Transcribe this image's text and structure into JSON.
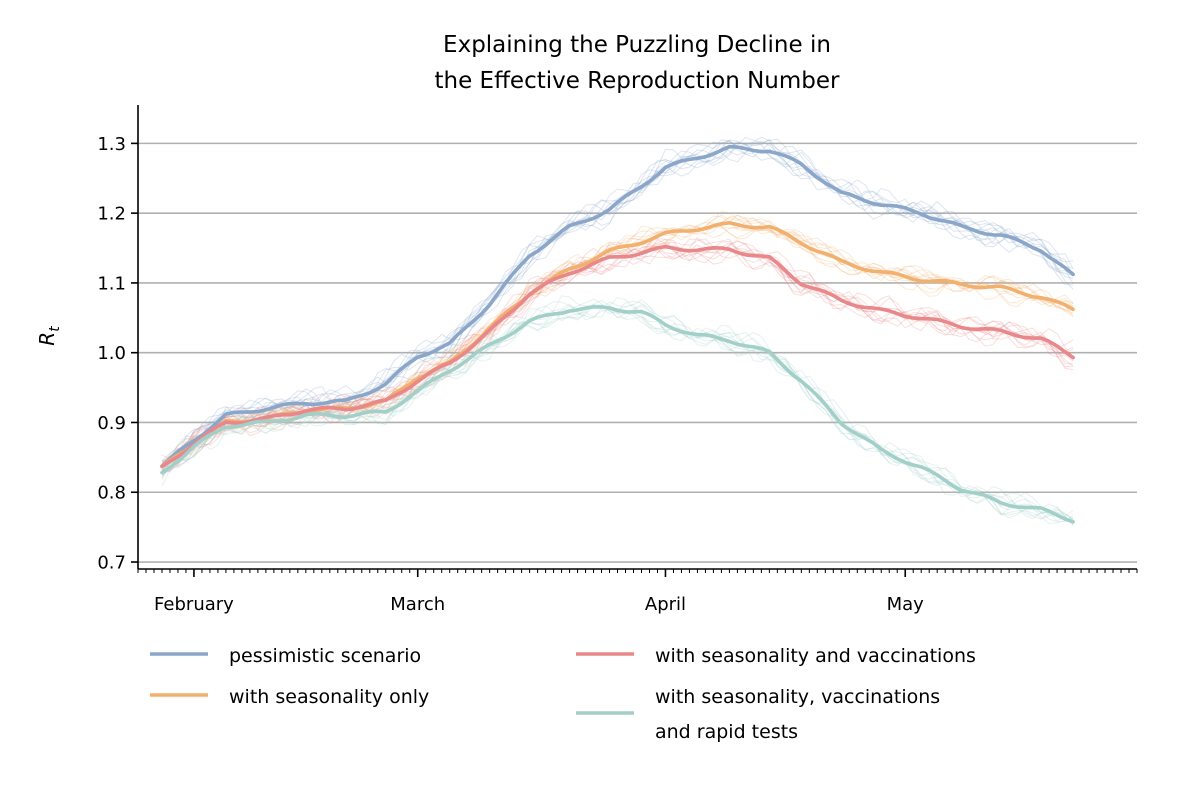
{
  "chart_data": {
    "type": "line",
    "title_lines": [
      "Explaining the Puzzling Decline in",
      "the Effective Reproduction Number"
    ],
    "xlabel": "",
    "ylabel": "R_t",
    "ylabel_main": "R",
    "ylabel_sub": "t",
    "x_axis": {
      "type": "date",
      "range": [
        "2021-01-25",
        "2021-05-30"
      ],
      "month_labels": [
        {
          "label": "February",
          "date": "2021-02-01"
        },
        {
          "label": "March",
          "date": "2021-03-01"
        },
        {
          "label": "April",
          "date": "2021-04-01"
        },
        {
          "label": "May",
          "date": "2021-05-01"
        }
      ],
      "minor_ticks": "daily"
    },
    "y_axis": {
      "range": [
        0.69,
        1.355
      ],
      "ticks": [
        0.7,
        0.8,
        0.9,
        1.0,
        1.1,
        1.2,
        1.3
      ],
      "tick_labels": [
        "0.7",
        "0.8",
        "0.9",
        "1.0",
        "1.1",
        "1.2",
        "1.3"
      ],
      "horizontal_grid": true
    },
    "legend": {
      "placement": "below",
      "columns": 2
    },
    "has_faint_simulation_runs": true,
    "series": [
      {
        "name": "pessimistic scenario",
        "color": "#8aa6c9",
        "x": [
          "2021-01-28",
          "2021-02-01",
          "2021-02-05",
          "2021-02-10",
          "2021-02-15",
          "2021-02-20",
          "2021-02-25",
          "2021-03-01",
          "2021-03-05",
          "2021-03-10",
          "2021-03-15",
          "2021-03-20",
          "2021-03-25",
          "2021-04-01",
          "2021-04-05",
          "2021-04-09",
          "2021-04-14",
          "2021-04-18",
          "2021-04-23",
          "2021-04-28",
          "2021-05-03",
          "2021-05-08",
          "2021-05-13",
          "2021-05-18",
          "2021-05-22"
        ],
        "values": [
          0.837,
          0.875,
          0.91,
          0.92,
          0.928,
          0.93,
          0.955,
          0.995,
          1.012,
          1.07,
          1.14,
          1.18,
          1.205,
          1.265,
          1.28,
          1.293,
          1.29,
          1.27,
          1.228,
          1.213,
          1.2,
          1.18,
          1.168,
          1.148,
          1.11
        ]
      },
      {
        "name": "with seasonality only",
        "color": "#f2b06e",
        "x": [
          "2021-01-28",
          "2021-02-01",
          "2021-02-05",
          "2021-02-10",
          "2021-02-15",
          "2021-02-20",
          "2021-02-25",
          "2021-03-01",
          "2021-03-05",
          "2021-03-10",
          "2021-03-15",
          "2021-03-20",
          "2021-03-25",
          "2021-04-01",
          "2021-04-05",
          "2021-04-09",
          "2021-04-14",
          "2021-04-18",
          "2021-04-23",
          "2021-04-28",
          "2021-05-03",
          "2021-05-08",
          "2021-05-13",
          "2021-05-18",
          "2021-05-22"
        ],
        "values": [
          0.835,
          0.87,
          0.9,
          0.905,
          0.918,
          0.92,
          0.93,
          0.965,
          0.985,
          1.035,
          1.085,
          1.12,
          1.145,
          1.17,
          1.178,
          1.184,
          1.18,
          1.158,
          1.13,
          1.115,
          1.105,
          1.098,
          1.093,
          1.08,
          1.062
        ]
      },
      {
        "name": "with seasonality and vaccinations",
        "color": "#e8888a",
        "x": [
          "2021-01-28",
          "2021-02-01",
          "2021-02-05",
          "2021-02-10",
          "2021-02-15",
          "2021-02-20",
          "2021-02-25",
          "2021-03-01",
          "2021-03-05",
          "2021-03-10",
          "2021-03-15",
          "2021-03-20",
          "2021-03-25",
          "2021-04-01",
          "2021-04-05",
          "2021-04-09",
          "2021-04-14",
          "2021-04-18",
          "2021-04-23",
          "2021-04-28",
          "2021-05-03",
          "2021-05-08",
          "2021-05-13",
          "2021-05-18",
          "2021-05-22"
        ],
        "values": [
          0.835,
          0.87,
          0.9,
          0.905,
          0.918,
          0.92,
          0.93,
          0.96,
          0.985,
          1.03,
          1.085,
          1.115,
          1.135,
          1.15,
          1.148,
          1.148,
          1.135,
          1.1,
          1.075,
          1.06,
          1.05,
          1.038,
          1.03,
          1.02,
          0.995
        ]
      },
      {
        "name": "with seasonality, vaccinations\nand rapid tests",
        "name_lines": [
          "with seasonality, vaccinations",
          "and rapid tests"
        ],
        "color": "#a3cfc9",
        "x": [
          "2021-01-28",
          "2021-02-01",
          "2021-02-05",
          "2021-02-10",
          "2021-02-15",
          "2021-02-20",
          "2021-02-25",
          "2021-03-01",
          "2021-03-05",
          "2021-03-10",
          "2021-03-15",
          "2021-03-20",
          "2021-03-25",
          "2021-03-29",
          "2021-04-01",
          "2021-04-05",
          "2021-04-09",
          "2021-04-14",
          "2021-04-18",
          "2021-04-23",
          "2021-04-28",
          "2021-05-03",
          "2021-05-08",
          "2021-05-13",
          "2021-05-18",
          "2021-05-22"
        ],
        "values": [
          0.828,
          0.865,
          0.895,
          0.9,
          0.91,
          0.91,
          0.915,
          0.945,
          0.975,
          1.01,
          1.045,
          1.062,
          1.064,
          1.058,
          1.04,
          1.025,
          1.018,
          1.0,
          0.96,
          0.9,
          0.86,
          0.835,
          0.805,
          0.785,
          0.775,
          0.76
        ]
      }
    ]
  }
}
